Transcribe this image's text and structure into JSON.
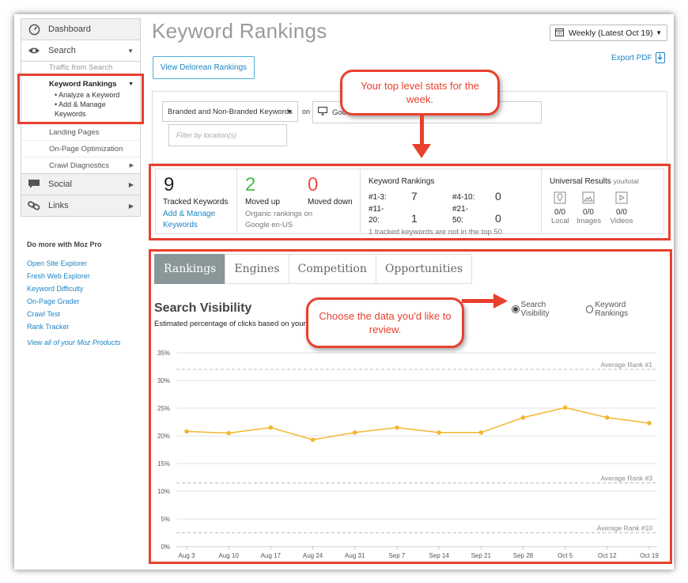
{
  "sidebar": {
    "dashboard": "Dashboard",
    "search": "Search",
    "traffic": "Traffic from Search",
    "keyword_rankings": "Keyword Rankings",
    "analyze": "• Analyze a Keyword",
    "add_manage": "• Add & Manage Keywords",
    "landing": "Landing Pages",
    "onpage": "On-Page Optimization",
    "crawl": "Crawl Diagnostics",
    "social": "Social",
    "links": "Links"
  },
  "moz_pro": {
    "heading": "Do more with Moz Pro",
    "links": [
      "Open Site Explorer",
      "Fresh Web Explorer",
      "Keyword Difficulty",
      "On-Page Grader",
      "Crawl Test",
      "Rank Tracker"
    ],
    "all": "View all of your Moz Products"
  },
  "header": {
    "title": "Keyword Rankings",
    "date_select": "Weekly (Latest Oct 19)",
    "delorean": "View Delorean Rankings",
    "export": "Export PDF"
  },
  "filters": {
    "keywords_select": "Branded and Non-Branded Keywords",
    "on": "on",
    "engine": "Goo",
    "location_placeholder": "Filter by location(s)"
  },
  "callouts": {
    "top": "Your top level stats for the week.",
    "data": "Choose the data you'd like to review."
  },
  "stats": {
    "tracked_value": "9",
    "tracked_label": "Tracked Keywords",
    "add_manage": "Add & Manage Keywords",
    "moved_up_value": "2",
    "moved_up_label": "Moved up",
    "moved_down_value": "0",
    "moved_down_label": "Moved down",
    "organic_note": "Organic rankings on Google en-US",
    "kr_heading": "Keyword Rankings",
    "r1_label": "#1-3:",
    "r1_value": "7",
    "r2_label": "#4-10:",
    "r2_value": "0",
    "r3_label": "#11-20:",
    "r3_value": "1",
    "r4_label": "#21-50:",
    "r4_value": "0",
    "kr_note": "1 tracked keywords are not in the top 50",
    "ur_heading": "Universal Results",
    "ur_sub": "you/total",
    "local_value": "0/0",
    "local_label": "Local",
    "images_value": "0/0",
    "images_label": "Images",
    "videos_value": "0/0",
    "videos_label": "Videos"
  },
  "tabs": [
    "Rankings",
    "Engines",
    "Competition",
    "Opportunities"
  ],
  "visibility": {
    "title": "Search Visibility",
    "subtitle": "Estimated percentage of clicks based on your",
    "radio_sv": "Search Visibility",
    "radio_kr": "Keyword Rankings"
  },
  "colors": {
    "accent": "#e8402e",
    "line": "#f3b731",
    "link": "#1c84c6",
    "up": "#4cbb4a",
    "down": "#ef4d3a"
  },
  "chart_data": {
    "type": "line",
    "categories": [
      "Aug 3",
      "Aug 10",
      "Aug 17",
      "Aug 24",
      "Aug 31",
      "Sep 7",
      "Sep 14",
      "Sep 21",
      "Sep 28",
      "Oct 5",
      "Oct 12",
      "Oct 19"
    ],
    "values": [
      20.8,
      20.5,
      21.5,
      19.3,
      20.6,
      21.5,
      20.6,
      20.6,
      23.3,
      25.1,
      23.3,
      22.3
    ],
    "yticks": [
      "0%",
      "5%",
      "10%",
      "15%",
      "20%",
      "25%",
      "30%",
      "35%"
    ],
    "ylim": [
      0,
      35
    ],
    "reference_lines": [
      {
        "label": "Average Rank #1",
        "value": 32
      },
      {
        "label": "Average Rank #3",
        "value": 11.5
      },
      {
        "label": "Average Rank #10",
        "value": 2.5
      }
    ],
    "grid": true
  }
}
